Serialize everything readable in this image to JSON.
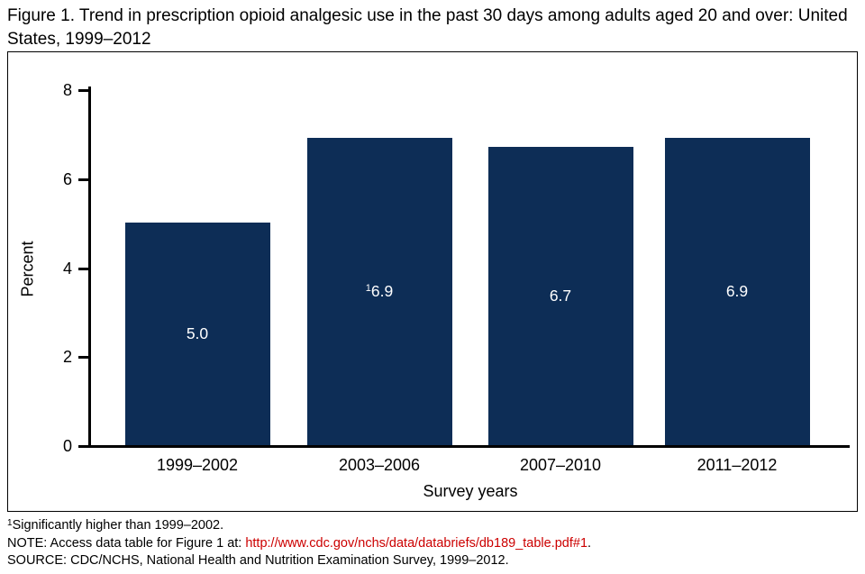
{
  "title": "Figure 1. Trend in prescription opioid analgesic use in the past 30 days among adults aged 20 and over: United States, 1999–2012",
  "chart_data": {
    "type": "bar",
    "title": "Trend in prescription opioid analgesic use in the past 30 days among adults aged 20 and over: United States, 1999–2012",
    "xlabel": "Survey years",
    "ylabel": "Percent",
    "ylim": [
      0,
      8
    ],
    "yticks": [
      0,
      2,
      4,
      6,
      8
    ],
    "grid": false,
    "legend": "none",
    "categories": [
      "1999–2002",
      "2003–2006",
      "2007–2010",
      "2011–2012"
    ],
    "values": [
      5.0,
      6.9,
      6.7,
      6.9
    ],
    "bar_labels": [
      {
        "superscript": "",
        "text": "5.0"
      },
      {
        "superscript": "1",
        "text": "6.9"
      },
      {
        "superscript": "",
        "text": "6.7"
      },
      {
        "superscript": "",
        "text": "6.9"
      }
    ],
    "bar_color": "#0d2d56",
    "label_color": "#ffffff"
  },
  "footnotes": {
    "note1_sup": "1",
    "note1_text": "Significantly higher than 1999–2002.",
    "note2_prefix": "NOTE: Access data table for Figure 1 at: ",
    "note2_link": "http://www.cdc.gov/nchs/data/databriefs/db189_table.pdf#1",
    "note2_suffix": ".",
    "source": "SOURCE: CDC/NCHS, National Health and Nutrition Examination Survey, 1999–2012.",
    "link_color": "#cc0000"
  }
}
